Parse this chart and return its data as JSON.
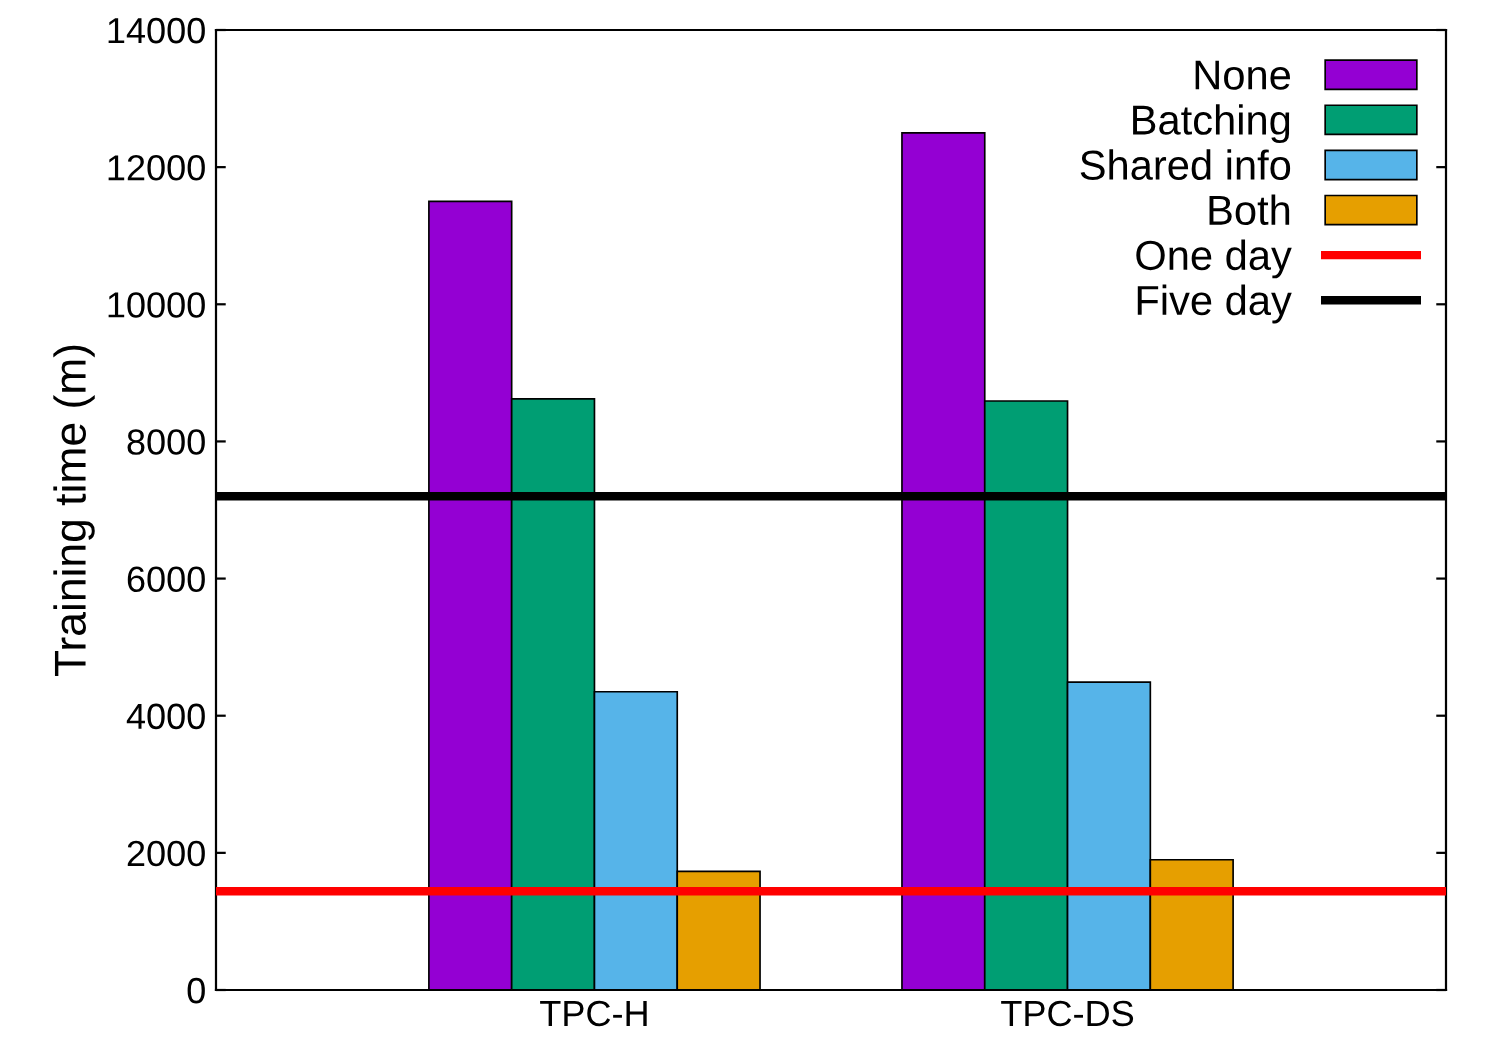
{
  "chart_data": {
    "type": "bar",
    "ylabel": "Training time (m)",
    "categories": [
      "TPC-H",
      "TPC-DS"
    ],
    "series": [
      {
        "name": "None",
        "color": "#9400d3",
        "values": [
          11500,
          12500
        ]
      },
      {
        "name": "Batching",
        "color": "#009e73",
        "values": [
          8620,
          8590
        ]
      },
      {
        "name": "Shared info",
        "color": "#56b4e9",
        "values": [
          4350,
          4490
        ]
      },
      {
        "name": "Both",
        "color": "#e69f00",
        "values": [
          1730,
          1900
        ]
      }
    ],
    "ref_lines": [
      {
        "axis": "y",
        "value": 1440,
        "label": "One day",
        "color": "#ff0000",
        "line_style": "solid"
      },
      {
        "axis": "y",
        "value": 7200,
        "label": "Five day",
        "color": "#000000",
        "line_style": "solid"
      }
    ],
    "ylim": [
      0,
      14000
    ],
    "yticks": [
      0,
      2000,
      4000,
      6000,
      8000,
      10000,
      12000,
      14000
    ],
    "grid": false,
    "legend": "top right"
  }
}
